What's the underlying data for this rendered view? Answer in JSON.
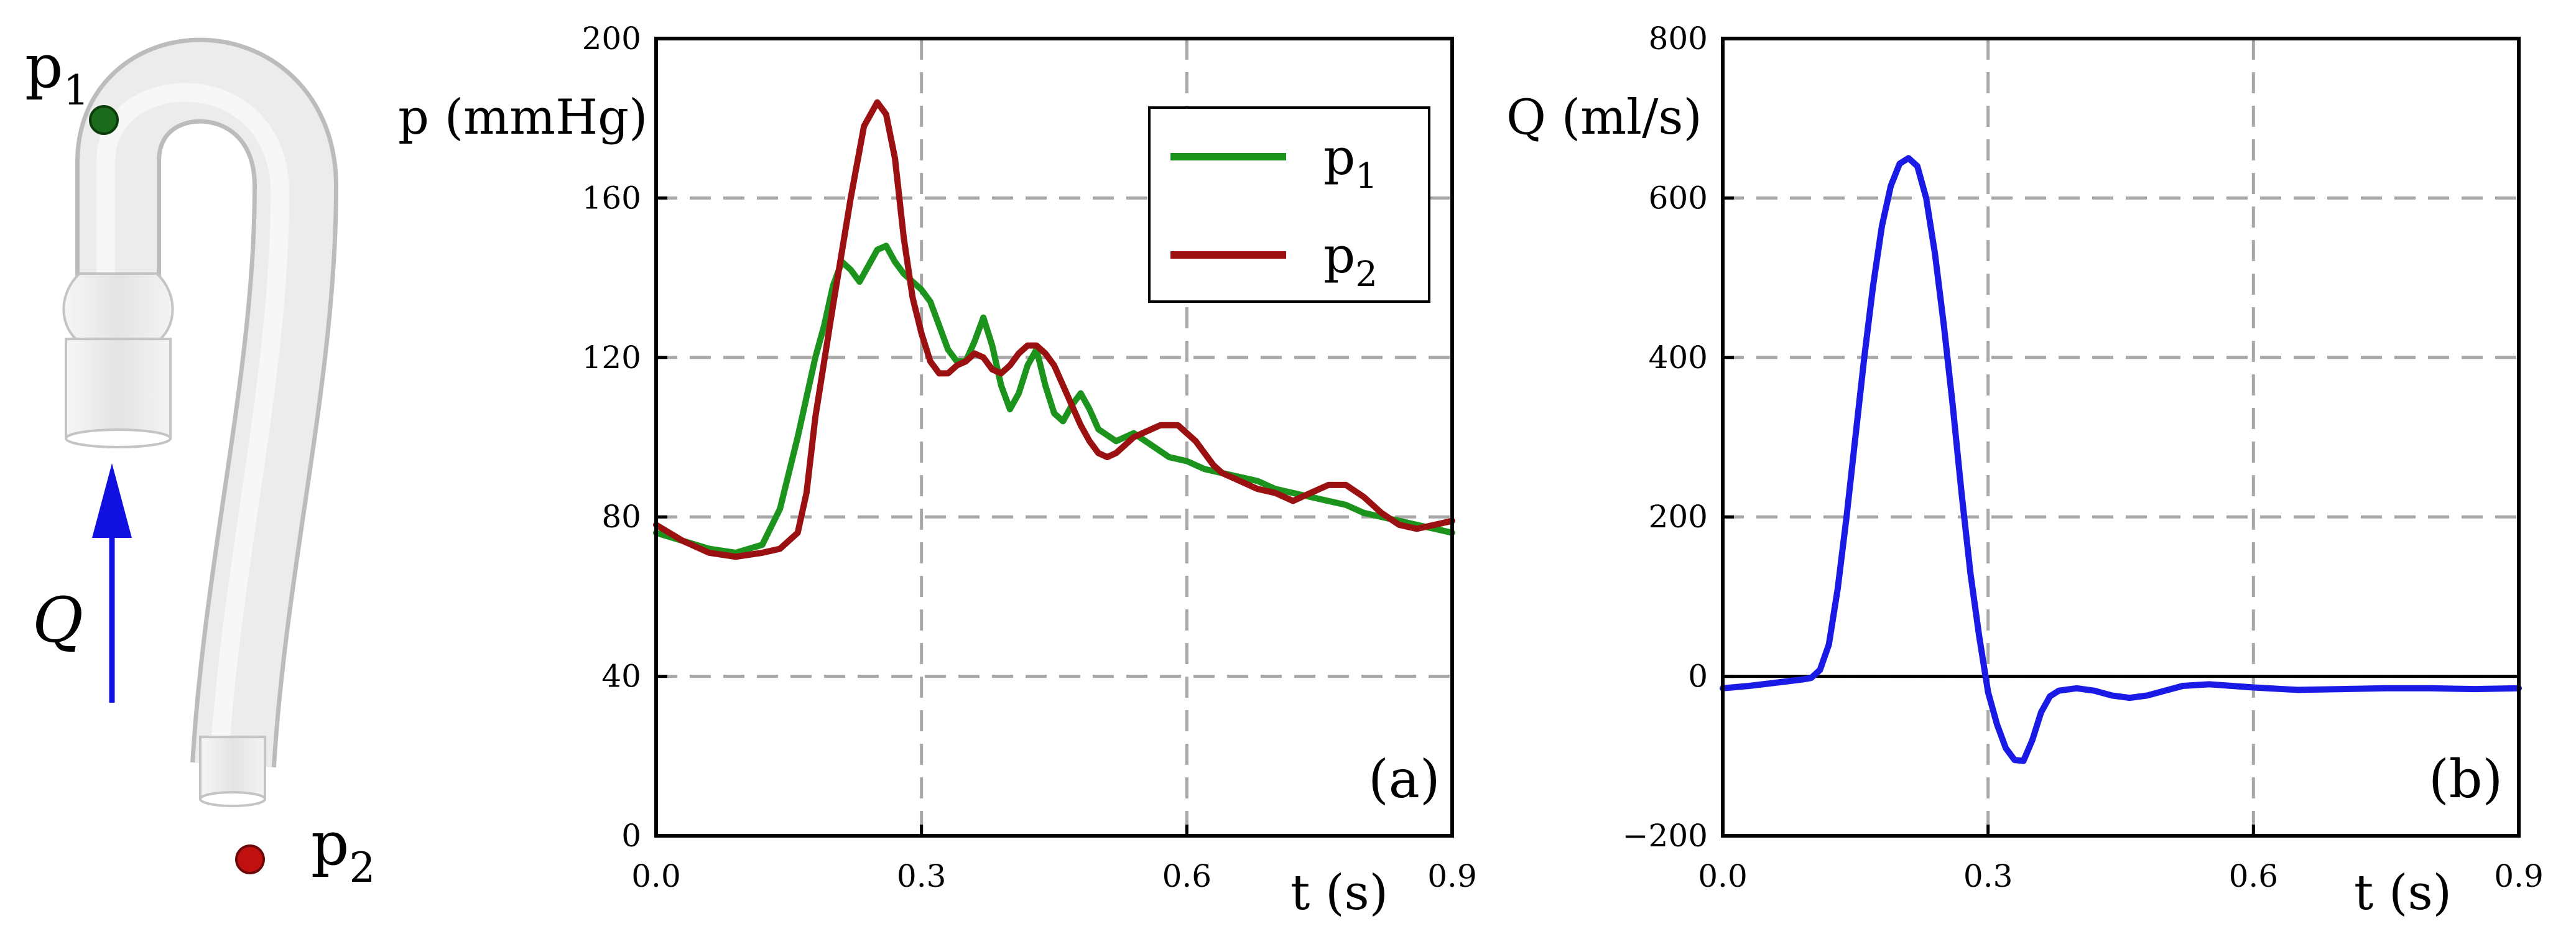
{
  "schematic": {
    "p1_label": "p",
    "p1_sub": "1",
    "p2_label": "p",
    "p2_sub": "2",
    "q_label": "Q",
    "colors": {
      "p1_dot": "#1c6b1c",
      "p2_dot": "#c01010",
      "arrow": "#1010e0",
      "vessel_fill": "#ededed",
      "vessel_edge": "#c4c4c4"
    }
  },
  "chart_data": [
    {
      "panel_label": "(a)",
      "type": "line",
      "title": "",
      "xlabel": "t (s)",
      "ylabel": "p (mmHg)",
      "xlim": [
        0,
        0.9
      ],
      "ylim": [
        0,
        200
      ],
      "xticks": [
        0,
        0.3,
        0.6,
        0.9
      ],
      "xtick_labels": [
        "0.0",
        "0.3",
        "0.6",
        "0.9"
      ],
      "yticks": [
        0,
        40,
        80,
        120,
        160,
        200
      ],
      "ytick_labels": [
        "0",
        "40",
        "80",
        "120",
        "160",
        "200"
      ],
      "grid": true,
      "legend_position": "top-right",
      "series": [
        {
          "name": "p",
          "sub": "1",
          "color": "#1c931c",
          "points": [
            [
              0,
              76
            ],
            [
              0.03,
              74
            ],
            [
              0.06,
              72
            ],
            [
              0.09,
              71
            ],
            [
              0.12,
              73
            ],
            [
              0.14,
              82
            ],
            [
              0.16,
              100
            ],
            [
              0.18,
              120
            ],
            [
              0.19,
              128
            ],
            [
              0.2,
              138
            ],
            [
              0.21,
              144
            ],
            [
              0.22,
              142
            ],
            [
              0.23,
              139
            ],
            [
              0.24,
              143
            ],
            [
              0.25,
              147
            ],
            [
              0.26,
              148
            ],
            [
              0.27,
              144
            ],
            [
              0.28,
              141
            ],
            [
              0.29,
              139
            ],
            [
              0.3,
              137
            ],
            [
              0.31,
              134
            ],
            [
              0.32,
              128
            ],
            [
              0.33,
              122
            ],
            [
              0.34,
              119
            ],
            [
              0.35,
              119
            ],
            [
              0.36,
              124
            ],
            [
              0.37,
              130
            ],
            [
              0.38,
              123
            ],
            [
              0.39,
              113
            ],
            [
              0.4,
              107
            ],
            [
              0.41,
              111
            ],
            [
              0.42,
              118
            ],
            [
              0.43,
              122
            ],
            [
              0.44,
              113
            ],
            [
              0.45,
              106
            ],
            [
              0.46,
              104
            ],
            [
              0.47,
              108
            ],
            [
              0.48,
              111
            ],
            [
              0.49,
              107
            ],
            [
              0.5,
              102
            ],
            [
              0.52,
              99
            ],
            [
              0.54,
              101
            ],
            [
              0.56,
              98
            ],
            [
              0.58,
              95
            ],
            [
              0.6,
              94
            ],
            [
              0.62,
              92
            ],
            [
              0.64,
              91
            ],
            [
              0.66,
              90
            ],
            [
              0.68,
              89
            ],
            [
              0.7,
              87
            ],
            [
              0.72,
              86
            ],
            [
              0.74,
              85
            ],
            [
              0.76,
              84
            ],
            [
              0.78,
              83
            ],
            [
              0.8,
              81
            ],
            [
              0.82,
              80
            ],
            [
              0.84,
              79
            ],
            [
              0.86,
              78
            ],
            [
              0.88,
              77
            ],
            [
              0.9,
              76
            ]
          ]
        },
        {
          "name": "p",
          "sub": "2",
          "color": "#9b1111",
          "points": [
            [
              0,
              78
            ],
            [
              0.03,
              74
            ],
            [
              0.06,
              71
            ],
            [
              0.09,
              70
            ],
            [
              0.12,
              71
            ],
            [
              0.14,
              72
            ],
            [
              0.16,
              76
            ],
            [
              0.17,
              86
            ],
            [
              0.18,
              105
            ],
            [
              0.2,
              133
            ],
            [
              0.22,
              160
            ],
            [
              0.235,
              178
            ],
            [
              0.25,
              184
            ],
            [
              0.26,
              181
            ],
            [
              0.27,
              170
            ],
            [
              0.28,
              150
            ],
            [
              0.29,
              135
            ],
            [
              0.3,
              126
            ],
            [
              0.31,
              119
            ],
            [
              0.32,
              116
            ],
            [
              0.33,
              116
            ],
            [
              0.34,
              118
            ],
            [
              0.35,
              119
            ],
            [
              0.36,
              121
            ],
            [
              0.37,
              120
            ],
            [
              0.38,
              117
            ],
            [
              0.39,
              116
            ],
            [
              0.4,
              118
            ],
            [
              0.41,
              121
            ],
            [
              0.42,
              123
            ],
            [
              0.43,
              123
            ],
            [
              0.44,
              121
            ],
            [
              0.45,
              118
            ],
            [
              0.46,
              113
            ],
            [
              0.47,
              108
            ],
            [
              0.48,
              103
            ],
            [
              0.49,
              99
            ],
            [
              0.5,
              96
            ],
            [
              0.51,
              95
            ],
            [
              0.52,
              96
            ],
            [
              0.53,
              98
            ],
            [
              0.54,
              100
            ],
            [
              0.55,
              101
            ],
            [
              0.56,
              102
            ],
            [
              0.57,
              103
            ],
            [
              0.58,
              103
            ],
            [
              0.59,
              103
            ],
            [
              0.6,
              101
            ],
            [
              0.61,
              99
            ],
            [
              0.62,
              96
            ],
            [
              0.63,
              93
            ],
            [
              0.64,
              91
            ],
            [
              0.66,
              89
            ],
            [
              0.68,
              87
            ],
            [
              0.7,
              86
            ],
            [
              0.72,
              84
            ],
            [
              0.74,
              86
            ],
            [
              0.76,
              88
            ],
            [
              0.78,
              88
            ],
            [
              0.8,
              85
            ],
            [
              0.82,
              81
            ],
            [
              0.84,
              78
            ],
            [
              0.86,
              77
            ],
            [
              0.88,
              78
            ],
            [
              0.9,
              79
            ]
          ]
        }
      ]
    },
    {
      "panel_label": "(b)",
      "type": "line",
      "title": "",
      "xlabel": "t (s)",
      "ylabel": "Q (ml/s)",
      "xlim": [
        0,
        0.9
      ],
      "ylim": [
        -200,
        800
      ],
      "xticks": [
        0,
        0.3,
        0.6,
        0.9
      ],
      "xtick_labels": [
        "0.0",
        "0.3",
        "0.6",
        "0.9"
      ],
      "yticks": [
        -200,
        0,
        200,
        400,
        600,
        800
      ],
      "ytick_labels": [
        "−200",
        "0",
        "200",
        "400",
        "600",
        "800"
      ],
      "grid": true,
      "zero_line": true,
      "series": [
        {
          "name": "Q",
          "color": "#1a1ae6",
          "points": [
            [
              0,
              -15
            ],
            [
              0.03,
              -12
            ],
            [
              0.06,
              -8
            ],
            [
              0.09,
              -4
            ],
            [
              0.1,
              -2
            ],
            [
              0.11,
              8
            ],
            [
              0.12,
              40
            ],
            [
              0.13,
              110
            ],
            [
              0.14,
              200
            ],
            [
              0.15,
              300
            ],
            [
              0.16,
              400
            ],
            [
              0.17,
              490
            ],
            [
              0.18,
              565
            ],
            [
              0.19,
              615
            ],
            [
              0.2,
              643
            ],
            [
              0.21,
              650
            ],
            [
              0.22,
              640
            ],
            [
              0.23,
              600
            ],
            [
              0.24,
              530
            ],
            [
              0.25,
              440
            ],
            [
              0.26,
              340
            ],
            [
              0.27,
              230
            ],
            [
              0.28,
              130
            ],
            [
              0.29,
              50
            ],
            [
              0.3,
              -20
            ],
            [
              0.31,
              -60
            ],
            [
              0.32,
              -90
            ],
            [
              0.33,
              -105
            ],
            [
              0.34,
              -106
            ],
            [
              0.35,
              -80
            ],
            [
              0.36,
              -45
            ],
            [
              0.37,
              -25
            ],
            [
              0.38,
              -18
            ],
            [
              0.4,
              -15
            ],
            [
              0.42,
              -18
            ],
            [
              0.44,
              -24
            ],
            [
              0.46,
              -27
            ],
            [
              0.48,
              -24
            ],
            [
              0.5,
              -18
            ],
            [
              0.52,
              -12
            ],
            [
              0.55,
              -10
            ],
            [
              0.6,
              -14
            ],
            [
              0.65,
              -17
            ],
            [
              0.7,
              -16
            ],
            [
              0.75,
              -15
            ],
            [
              0.8,
              -15
            ],
            [
              0.85,
              -16
            ],
            [
              0.9,
              -15
            ]
          ]
        }
      ]
    }
  ]
}
